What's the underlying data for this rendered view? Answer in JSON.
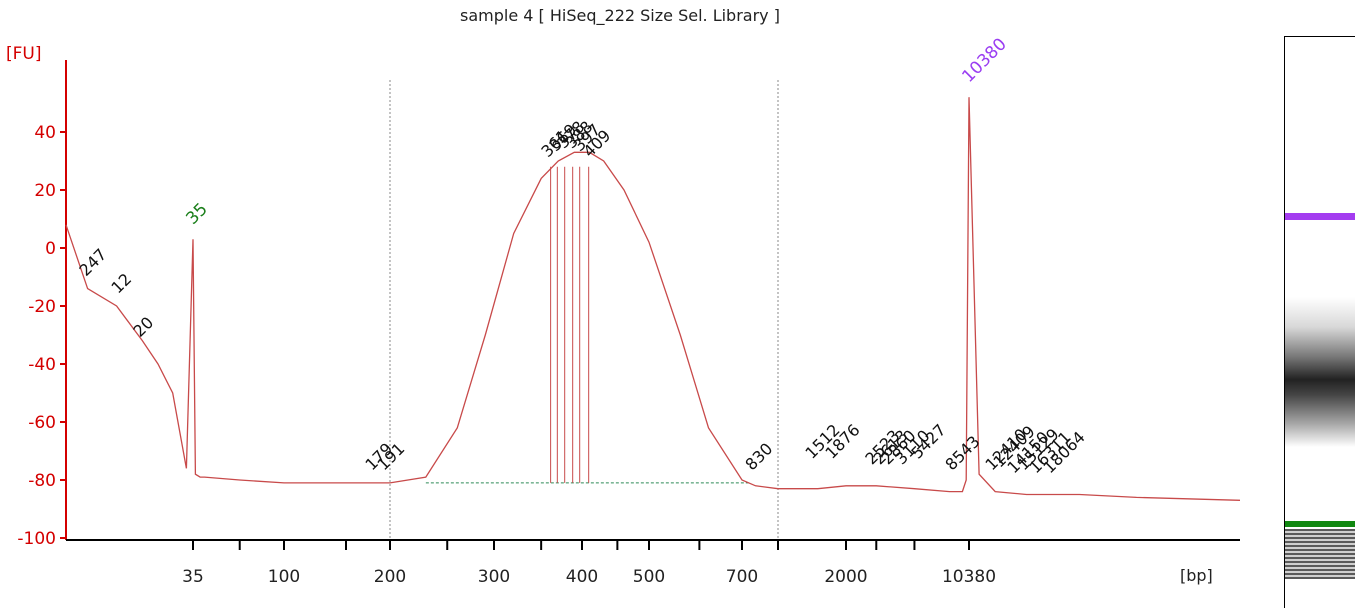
{
  "title": "sample 4  [ HiSeq_222 Size Sel. Library ]",
  "y_axis_unit": "[FU]",
  "x_axis_unit": "[bp]",
  "colors": {
    "trace": "#c84a4a",
    "axis": "#d40000",
    "lower_marker": "#1b7f1b",
    "upper_marker": "#9a3df2",
    "baseline": "#2e8b57",
    "gel_lower": "#118811",
    "gel_upper": "#a43cf0"
  },
  "chart_data": {
    "type": "line",
    "title": "sample 4  [ HiSeq_222 Size Sel. Library ]",
    "xlabel": "[bp]",
    "ylabel": "[FU]",
    "ylim": [
      -100,
      55
    ],
    "y_ticks": [
      -100,
      -80,
      -60,
      -40,
      -20,
      0,
      20,
      40
    ],
    "x_ticks": [
      "35",
      "100",
      "200",
      "300",
      "400",
      "500",
      "700",
      "2000",
      "10380"
    ],
    "markers": [
      {
        "label": "35",
        "size_bp": 35,
        "fu": 3,
        "kind": "lower"
      },
      {
        "label": "10380",
        "size_bp": 10380,
        "fu": 52,
        "kind": "upper"
      }
    ],
    "region_bounds_bp": [
      200,
      1000
    ],
    "peak_labels": [
      "247",
      "12",
      "20",
      "179",
      "191",
      "361",
      "369",
      "378",
      "388",
      "397",
      "409",
      "830",
      "1512",
      "1876",
      "2523",
      "2613",
      "2860",
      "3110",
      "5427",
      "8543",
      "12410",
      "12409",
      "14150",
      "15129",
      "16311",
      "18064"
    ],
    "series": [
      {
        "name": "sample 4",
        "x_bp": [
          20,
          22,
          25,
          28,
          30,
          32,
          34,
          35,
          36,
          38,
          40,
          60,
          100,
          150,
          200,
          230,
          260,
          290,
          320,
          350,
          370,
          390,
          410,
          430,
          460,
          500,
          560,
          620,
          700,
          800,
          1000,
          1500,
          2000,
          3000,
          5000,
          8000,
          9500,
          10000,
          10380,
          10800,
          11500,
          13000,
          16000,
          20000,
          30000
        ],
        "y_fu": [
          8,
          -14,
          -20,
          -32,
          -40,
          -50,
          -76,
          3,
          -78,
          -79,
          -79,
          -80,
          -81,
          -81,
          -81,
          -79,
          -62,
          -30,
          5,
          24,
          30,
          33,
          33,
          30,
          20,
          2,
          -30,
          -62,
          -80,
          -82,
          -83,
          -83,
          -82,
          -82,
          -83,
          -84,
          -84,
          -80,
          52,
          -78,
          -84,
          -85,
          -85,
          -86,
          -87
        ]
      }
    ]
  },
  "gel": {
    "label": "sample 4 lane"
  }
}
